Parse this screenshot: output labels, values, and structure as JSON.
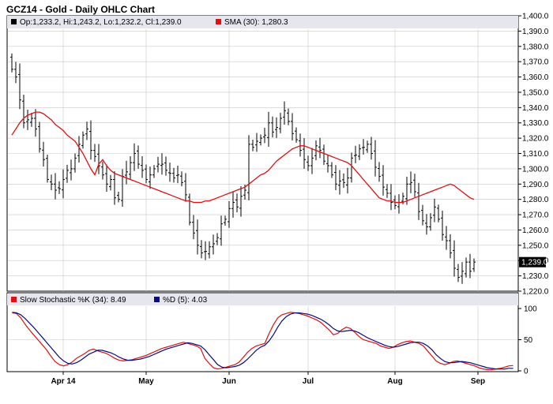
{
  "page_title": "GCZ14 - Gold - Daily OHLC Chart",
  "legend": {
    "ohlc_text": "Op:1,233.2, Hi:1,243.2, Lo:1,232.2, Cl:1,239.0",
    "sma_text": "SMA (30): 1,280.3",
    "stoch_k_text": "Slow Stochastic %K (34): 8.49",
    "stoch_d_text": "%D (5): 4.03"
  },
  "last_price_label": "1,239.0",
  "colors": {
    "background": "#ffffff",
    "header_band": "#e6e6ee",
    "grid": "#c8c8c8",
    "bar": "#000000",
    "sma": "#e01010",
    "stoch_k": "#e01010",
    "stoch_d": "#0a0a80",
    "last_box": "#000000"
  },
  "chart_data": [
    {
      "type": "ohlc",
      "title": "GCZ14 - Gold - Daily OHLC Chart",
      "y_axis_side": "right",
      "ylim": [
        1220,
        1400
      ],
      "y_ticks": [
        1220,
        1230,
        1240,
        1250,
        1260,
        1270,
        1280,
        1290,
        1300,
        1310,
        1320,
        1330,
        1340,
        1350,
        1360,
        1370,
        1380,
        1390,
        1400
      ],
      "y_tick_labels": [
        "1,220.0",
        "1,230.0",
        "1,240.0",
        "1,250.0",
        "1,260.0",
        "1,270.0",
        "1,280.0",
        "1,290.0",
        "1,300.0",
        "1,310.0",
        "1,320.0",
        "1,330.0",
        "1,340.0",
        "1,350.0",
        "1,360.0",
        "1,370.0",
        "1,380.0",
        "1,390.0",
        "1,400.0"
      ],
      "x_labels": [
        {
          "label": "Apr 14",
          "index": 13
        },
        {
          "label": "May",
          "index": 34
        },
        {
          "label": "Jun",
          "index": 55
        },
        {
          "label": "Jul",
          "index": 75
        },
        {
          "label": "Aug",
          "index": 97
        },
        {
          "label": "Sep",
          "index": 118
        }
      ],
      "n_bars": 128,
      "closes": [
        1365,
        1360,
        1345,
        1330,
        1332,
        1333,
        1326,
        1313,
        1306,
        1293,
        1290,
        1286,
        1287,
        1293,
        1299,
        1300,
        1307,
        1316,
        1322,
        1326,
        1312,
        1308,
        1302,
        1296,
        1290,
        1293,
        1281,
        1280,
        1295,
        1298,
        1304,
        1310,
        1303,
        1299,
        1293,
        1296,
        1300,
        1303,
        1303,
        1299,
        1297,
        1294,
        1296,
        1291,
        1283,
        1265,
        1258,
        1250,
        1245,
        1246,
        1249,
        1251,
        1255,
        1264,
        1267,
        1274,
        1278,
        1275,
        1282,
        1286,
        1316,
        1314,
        1318,
        1320,
        1322,
        1330,
        1324,
        1327,
        1333,
        1338,
        1331,
        1323,
        1319,
        1312,
        1306,
        1302,
        1307,
        1315,
        1312,
        1305,
        1302,
        1296,
        1290,
        1292,
        1291,
        1294,
        1307,
        1309,
        1313,
        1314,
        1316,
        1310,
        1301,
        1295,
        1288,
        1284,
        1278,
        1276,
        1278,
        1282,
        1290,
        1291,
        1285,
        1272,
        1266,
        1262,
        1268,
        1275,
        1267,
        1257,
        1253,
        1245,
        1235,
        1229,
        1233,
        1239,
        1233,
        1239
      ],
      "sma_30": [
        1322,
        1326,
        1330,
        1333,
        1335,
        1336,
        1337,
        1337,
        1336,
        1334,
        1332,
        1329,
        1327,
        1325,
        1322,
        1320,
        1318,
        1314,
        1310,
        1305,
        1300,
        1296,
        1303,
        1306,
        1302,
        1299,
        1297,
        1296,
        1295,
        1294,
        1293,
        1292,
        1291,
        1290,
        1289,
        1288,
        1287,
        1286,
        1285,
        1284,
        1283,
        1282,
        1281,
        1280,
        1279,
        1279,
        1278,
        1278,
        1278,
        1279,
        1279,
        1280,
        1281,
        1282,
        1283,
        1284,
        1285,
        1286,
        1287,
        1288,
        1290,
        1292,
        1294,
        1296,
        1297,
        1299,
        1302,
        1305,
        1307,
        1309,
        1311,
        1313,
        1314,
        1315,
        1315,
        1314,
        1313,
        1312,
        1311,
        1310,
        1309,
        1308,
        1307,
        1306,
        1305,
        1304,
        1302,
        1299,
        1296,
        1293,
        1290,
        1287,
        1284,
        1281,
        1280,
        1279,
        1279,
        1278,
        1278,
        1278,
        1279,
        1280,
        1281,
        1282,
        1283,
        1284,
        1285,
        1286,
        1287,
        1288,
        1289,
        1290,
        1289,
        1287,
        1285,
        1283,
        1281,
        1280
      ]
    },
    {
      "type": "line",
      "title": "Slow Stochastic",
      "y_axis_side": "right",
      "ylim": [
        0,
        100
      ],
      "y_ticks": [
        0,
        50,
        100
      ],
      "series": [
        {
          "name": "Slow Stochastic %K (34)",
          "values": [
            93,
            92,
            85,
            75,
            66,
            58,
            50,
            42,
            34,
            24,
            15,
            10,
            8,
            10,
            14,
            20,
            24,
            28,
            33,
            35,
            32,
            30,
            28,
            24,
            20,
            17,
            16,
            17,
            18,
            20,
            22,
            24,
            27,
            30,
            33,
            36,
            38,
            40,
            42,
            44,
            46,
            44,
            42,
            40,
            36,
            20,
            12,
            5,
            3,
            4,
            6,
            8,
            10,
            14,
            22,
            30,
            36,
            40,
            42,
            44,
            60,
            74,
            85,
            90,
            92,
            94,
            93,
            92,
            90,
            88,
            85,
            82,
            78,
            72,
            66,
            58,
            60,
            66,
            70,
            68,
            62,
            55,
            50,
            48,
            46,
            44,
            40,
            38,
            36,
            38,
            42,
            45,
            47,
            48,
            46,
            44,
            40,
            32,
            24,
            16,
            12,
            10,
            12,
            15,
            16,
            14,
            12,
            10,
            8,
            5,
            3,
            2,
            2,
            3,
            4,
            6,
            8,
            8.49
          ]
        },
        {
          "name": "%D (5)",
          "values": [
            94,
            93,
            90,
            84,
            77,
            70,
            62,
            54,
            46,
            38,
            30,
            22,
            16,
            12,
            11,
            13,
            17,
            22,
            27,
            30,
            33,
            33,
            31,
            29,
            26,
            22,
            19,
            17,
            17,
            18,
            19,
            21,
            23,
            26,
            29,
            32,
            35,
            37,
            39,
            41,
            43,
            45,
            44,
            42,
            40,
            34,
            26,
            18,
            10,
            6,
            5,
            6,
            7,
            9,
            13,
            19,
            26,
            33,
            38,
            41,
            48,
            58,
            70,
            80,
            87,
            91,
            93,
            93,
            92,
            91,
            89,
            86,
            83,
            79,
            74,
            68,
            64,
            63,
            64,
            65,
            64,
            61,
            57,
            53,
            50,
            47,
            44,
            41,
            39,
            38,
            39,
            41,
            43,
            45,
            46,
            46,
            44,
            40,
            34,
            26,
            20,
            15,
            13,
            13,
            14,
            15,
            14,
            13,
            11,
            9,
            7,
            5,
            4,
            3,
            3,
            3,
            4,
            4.03
          ]
        }
      ]
    }
  ]
}
